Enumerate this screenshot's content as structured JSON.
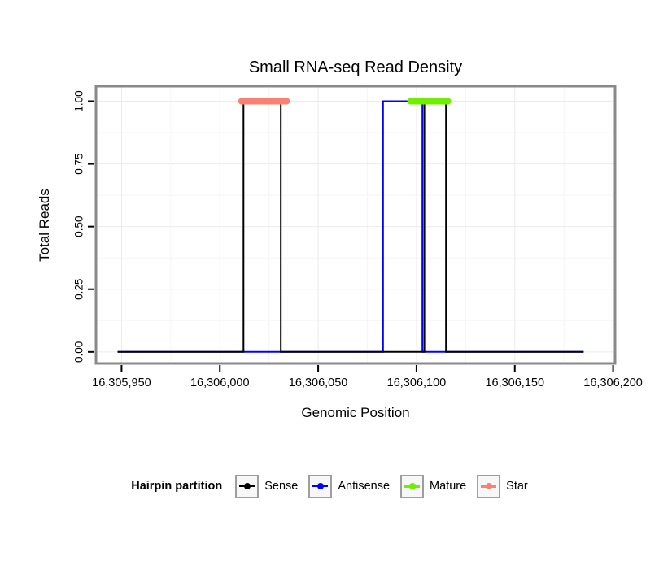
{
  "page": {
    "background": "#FFFFFF"
  },
  "chart_data": {
    "type": "line",
    "title": "Small RNA-seq Read Density",
    "xlabel": "Genomic Position",
    "ylabel": "Total Reads",
    "legend_title": "Hairpin partition",
    "legend_position": "bottom",
    "grid": true,
    "xlim": [
      16305937,
      16306201
    ],
    "ylim": [
      -0.046,
      1.06
    ],
    "x_ticks": [
      16305950,
      16306000,
      16306050,
      16306100,
      16306150,
      16306200
    ],
    "x_tick_labels": [
      "16,305,950",
      "16,306,000",
      "16,306,050",
      "16,306,100",
      "16,306,150",
      "16,306,200"
    ],
    "x_minor_ticks": [
      16305975,
      16306025,
      16306075,
      16306125,
      16306175
    ],
    "y_ticks": [
      0,
      0.25,
      0.5,
      0.75,
      1
    ],
    "y_tick_labels": [
      "0.00",
      "0.25",
      "0.50",
      "0.75",
      "1.00"
    ],
    "y_minor_ticks": [
      0.125,
      0.375,
      0.625,
      0.875
    ],
    "colors": {
      "grid_major": "#EBEBEB",
      "grid_minor": "#F5F5F5",
      "panel_border": "#898989",
      "axis_text": "#000000",
      "tick_mark": "#000000"
    },
    "series": [
      {
        "name": "Antisense",
        "color": "#0000FF",
        "linewidth": 2,
        "linecap": "butt",
        "points": [
          [
            16305948,
            0
          ],
          [
            16306083,
            0
          ],
          [
            16306083,
            1
          ],
          [
            16306103,
            1
          ],
          [
            16306103,
            0
          ],
          [
            16306185,
            0
          ]
        ]
      },
      {
        "name": "Sense",
        "color": "#000000",
        "linewidth": 2,
        "linecap": "butt",
        "points": [
          [
            16305948,
            0
          ],
          [
            16306012,
            0
          ],
          [
            16306012,
            1
          ],
          [
            16306031,
            1
          ],
          [
            16306031,
            0
          ],
          [
            16306104,
            0
          ],
          [
            16306104,
            1
          ],
          [
            16306115,
            1
          ],
          [
            16306115,
            0
          ],
          [
            16306185,
            0
          ]
        ]
      },
      {
        "name": "Mature",
        "color": "#6FEF00",
        "linewidth": 8,
        "linecap": "round",
        "points": [
          [
            16306097,
            1
          ],
          [
            16306116,
            1
          ]
        ]
      },
      {
        "name": "Star",
        "color": "#FA8072",
        "linewidth": 8,
        "linecap": "round",
        "points": [
          [
            16306011,
            1
          ],
          [
            16306034,
            1
          ]
        ]
      }
    ],
    "legend_order": [
      "Sense",
      "Antisense",
      "Mature",
      "Star"
    ]
  }
}
